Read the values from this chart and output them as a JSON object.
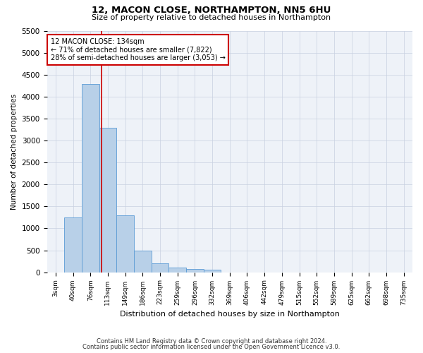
{
  "title_line1": "12, MACON CLOSE, NORTHAMPTON, NN5 6HU",
  "title_line2": "Size of property relative to detached houses in Northampton",
  "xlabel": "Distribution of detached houses by size in Northampton",
  "ylabel": "Number of detached properties",
  "categories": [
    "3sqm",
    "40sqm",
    "76sqm",
    "113sqm",
    "149sqm",
    "186sqm",
    "223sqm",
    "259sqm",
    "296sqm",
    "332sqm",
    "369sqm",
    "406sqm",
    "442sqm",
    "479sqm",
    "515sqm",
    "552sqm",
    "589sqm",
    "625sqm",
    "662sqm",
    "698sqm",
    "735sqm"
  ],
  "values": [
    0,
    1250,
    4300,
    3300,
    1300,
    500,
    200,
    100,
    75,
    50,
    0,
    0,
    0,
    0,
    0,
    0,
    0,
    0,
    0,
    0,
    0
  ],
  "bar_color": "#b8d0e8",
  "bar_edge_color": "#5b9bd5",
  "vline_x": 3.5,
  "annotation_text": "12 MACON CLOSE: 134sqm\n← 71% of detached houses are smaller (7,822)\n28% of semi-detached houses are larger (3,053) →",
  "annotation_box_color": "#ffffff",
  "annotation_box_edge_color": "#cc0000",
  "ylim": [
    0,
    5500
  ],
  "yticks": [
    0,
    500,
    1000,
    1500,
    2000,
    2500,
    3000,
    3500,
    4000,
    4500,
    5000,
    5500
  ],
  "grid_color": "#c8d0e0",
  "footer_line1": "Contains HM Land Registry data © Crown copyright and database right 2024.",
  "footer_line2": "Contains public sector information licensed under the Open Government Licence v3.0.",
  "bg_color": "#ffffff",
  "plot_bg_color": "#eef2f8"
}
